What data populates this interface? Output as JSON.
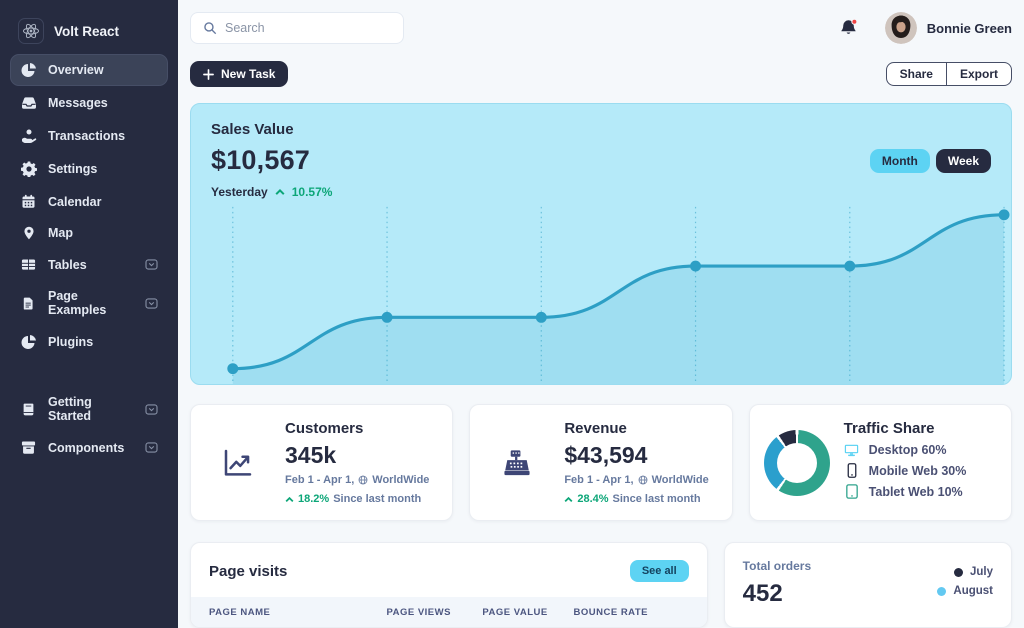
{
  "sidebar": {
    "brand": {
      "label": "Volt React"
    },
    "items": [
      {
        "label": "Overview"
      },
      {
        "label": "Messages"
      },
      {
        "label": "Transactions"
      },
      {
        "label": "Settings"
      },
      {
        "label": "Calendar"
      },
      {
        "label": "Map"
      },
      {
        "label": "Tables"
      },
      {
        "label": "Page Examples"
      },
      {
        "label": "Plugins"
      },
      {
        "label": "Getting Started"
      },
      {
        "label": "Components"
      }
    ]
  },
  "topbar": {
    "search_placeholder": "Search",
    "user_name": "Bonnie Green"
  },
  "toolbar": {
    "new_task_label": "New Task",
    "share_label": "Share",
    "export_label": "Export"
  },
  "sales_card": {
    "title": "Sales Value",
    "value": "$10,567",
    "period_label": "Yesterday",
    "change": "10.57%",
    "month_label": "Month",
    "week_label": "Week"
  },
  "chart_data": [
    {
      "type": "line",
      "title": "Sales Value",
      "x": [
        1,
        2,
        3,
        4,
        5,
        6
      ],
      "values": [
        1,
        2,
        2,
        3,
        3,
        4
      ],
      "ylim": [
        0,
        4.2
      ],
      "grid": "vertical-dashed-at-points",
      "area": true,
      "color": "#2d9fc5",
      "fill_color": "rgba(45,159,197,0.16)",
      "grid_color": "rgba(45,159,197,0.55)",
      "background": "#b5eaf9",
      "xlabel": "",
      "ylabel": "",
      "legend": "none"
    },
    {
      "type": "pie",
      "title": "Traffic Share",
      "slices": [
        {
          "label": "Desktop",
          "value": 60,
          "color": "#2fa38c"
        },
        {
          "label": "Mobile Web",
          "value": 30,
          "color": "#2b9fcd"
        },
        {
          "label": "Tablet Web",
          "value": 10,
          "color": "#262b40"
        }
      ],
      "donut": true,
      "legend": "right"
    }
  ],
  "stat_cards": [
    {
      "title": "Customers",
      "value": "345k",
      "subtitle_prefix": "Feb 1 - Apr 1,",
      "subtitle_location": "WorldWide",
      "change": "18.2%",
      "change_suffix": "Since last month"
    },
    {
      "title": "Revenue",
      "value": "$43,594",
      "subtitle_prefix": "Feb 1 - Apr 1,",
      "subtitle_location": "WorldWide",
      "change": "28.4%",
      "change_suffix": "Since last month"
    }
  ],
  "traffic_card": {
    "title": "Traffic Share",
    "items": [
      {
        "label": "Desktop 60%",
        "color": "#5dd3f3"
      },
      {
        "label": "Mobile Web 30%",
        "color": "#262b40"
      },
      {
        "label": "Tablet Web 10%",
        "color": "#2fa38c"
      }
    ]
  },
  "page_visits": {
    "title": "Page visits",
    "see_all_label": "See all",
    "columns": [
      "Page name",
      "Page views",
      "Page value",
      "Bounce rate"
    ]
  },
  "total_orders": {
    "title": "Total orders",
    "value": "452",
    "legend": [
      {
        "label": "July",
        "color": "#262b40"
      },
      {
        "label": "August",
        "color": "#63c9f1"
      }
    ]
  }
}
